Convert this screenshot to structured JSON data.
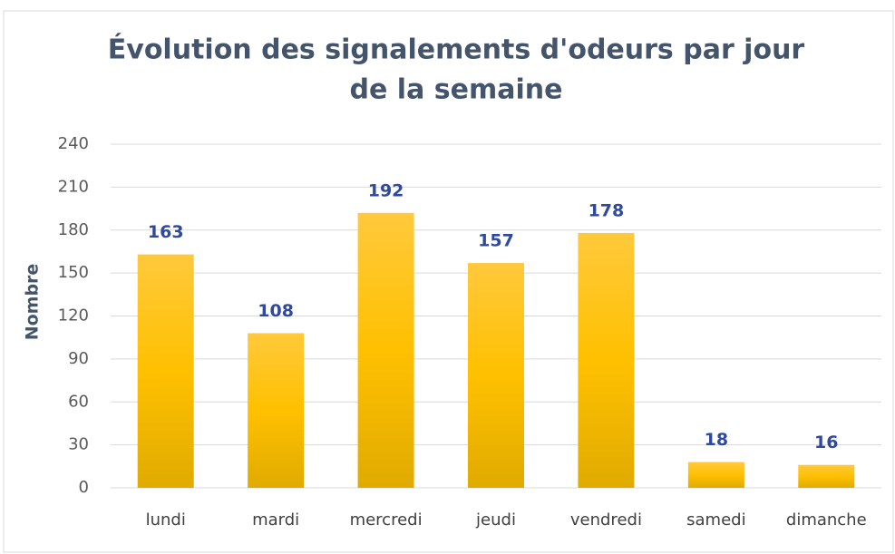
{
  "chart_data": {
    "type": "bar",
    "title": [
      "Évolution des signalements d'odeurs par jour",
      "de la semaine"
    ],
    "y_label": "Nombre",
    "categories": [
      "lundi",
      "mardi",
      "mercredi",
      "jeudi",
      "vendredi",
      "samedi",
      "dimanche"
    ],
    "values": [
      163,
      108,
      192,
      157,
      178,
      18,
      16
    ],
    "color": "#ffc000",
    "label_color": "#2f4a9c",
    "ylim": [
      0,
      240
    ],
    "yticks": [
      0,
      30,
      60,
      90,
      120,
      150,
      180,
      210,
      240
    ],
    "grid": true
  }
}
